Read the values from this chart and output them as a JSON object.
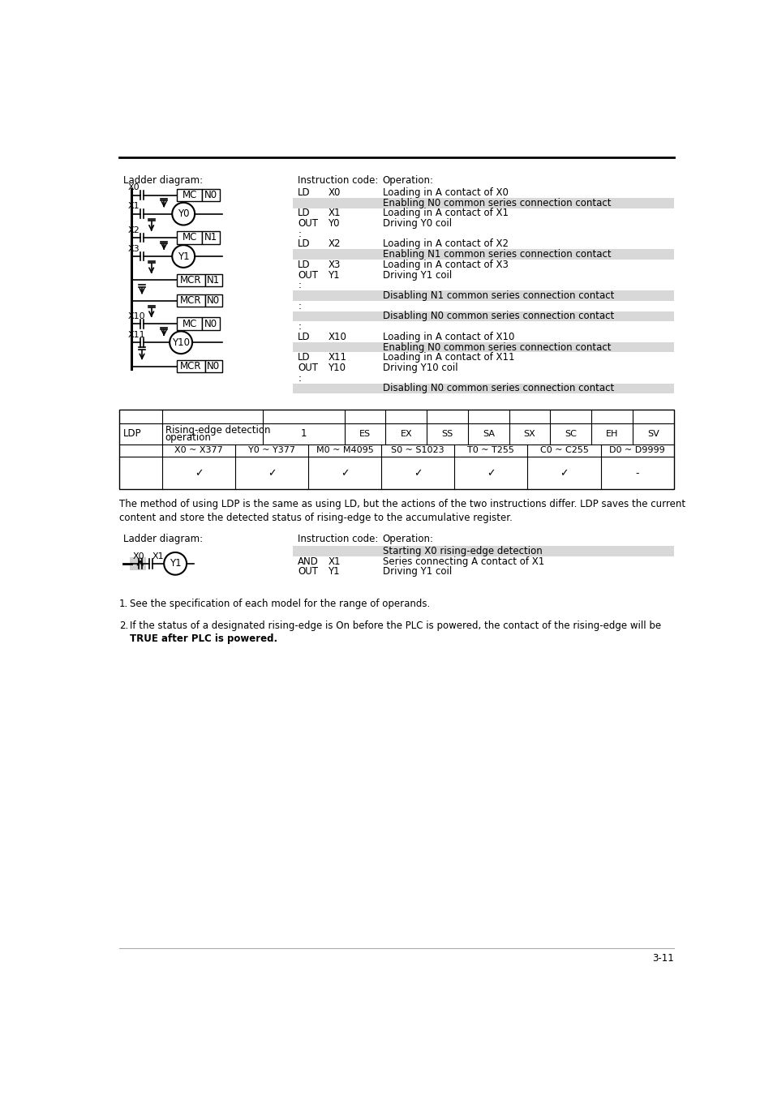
{
  "page_number": "3-11",
  "top_section": {
    "instructions": [
      {
        "col1": "LD",
        "col2": "X0",
        "col3": "Loading in A contact of X0",
        "highlight": false
      },
      {
        "col1": "",
        "col2": "",
        "col3": "Enabling N0 common series connection contact",
        "highlight": true
      },
      {
        "col1": "LD",
        "col2": "X1",
        "col3": "Loading in A contact of X1",
        "highlight": false
      },
      {
        "col1": "OUT",
        "col2": "Y0",
        "col3": "Driving Y0 coil",
        "highlight": false
      },
      {
        "col1": ":",
        "col2": "",
        "col3": "",
        "highlight": false
      },
      {
        "col1": "LD",
        "col2": "X2",
        "col3": "Loading in A contact of X2",
        "highlight": false
      },
      {
        "col1": "",
        "col2": "",
        "col3": "Enabling N1 common series connection contact",
        "highlight": true
      },
      {
        "col1": "LD",
        "col2": "X3",
        "col3": "Loading in A contact of X3",
        "highlight": false
      },
      {
        "col1": "OUT",
        "col2": "Y1",
        "col3": "Driving Y1 coil",
        "highlight": false
      },
      {
        "col1": ":",
        "col2": "",
        "col3": "",
        "highlight": false
      },
      {
        "col1": "",
        "col2": "",
        "col3": "Disabling N1 common series connection contact",
        "highlight": true
      },
      {
        "col1": ":",
        "col2": "",
        "col3": "",
        "highlight": false
      },
      {
        "col1": "",
        "col2": "",
        "col3": "Disabling N0 common series connection contact",
        "highlight": true
      },
      {
        "col1": ":",
        "col2": "",
        "col3": "",
        "highlight": false
      },
      {
        "col1": "LD",
        "col2": "X10",
        "col3": "Loading in A contact of X10",
        "highlight": false
      },
      {
        "col1": "",
        "col2": "",
        "col3": "Enabling N0 common series connection contact",
        "highlight": true
      },
      {
        "col1": "LD",
        "col2": "X11",
        "col3": "Loading in A contact of X11",
        "highlight": false
      },
      {
        "col1": "OUT",
        "col2": "Y10",
        "col3": "Driving Y10 coil",
        "highlight": false
      },
      {
        "col1": ":",
        "col2": "",
        "col3": "",
        "highlight": false
      },
      {
        "col1": "",
        "col2": "",
        "col3": "Disabling N0 common series connection contact",
        "highlight": true
      }
    ]
  },
  "ldp_table": {
    "instruction": "LDP",
    "description_line1": "Rising-edge detection",
    "description_line2": "operation",
    "steps": "1",
    "plc_types": [
      "ES",
      "EX",
      "SS",
      "SA",
      "SX",
      "SC",
      "EH",
      "SV"
    ],
    "operand_cols": [
      "X0 ~ X377",
      "Y0 ~ Y377",
      "M0 ~ M4095",
      "S0 ~ S1023",
      "T0 ~ T255",
      "C0 ~ C255",
      "D0 ~ D9999"
    ],
    "operand_checks": [
      "✓",
      "✓",
      "✓",
      "✓",
      "✓",
      "✓",
      "-"
    ]
  },
  "ldp_text_line1": "The method of using LDP is the same as using LD, but the actions of the two instructions differ. LDP saves the current",
  "ldp_text_line2": "content and store the detected status of rising-edge to the accumulative register.",
  "bottom_section": {
    "instructions": [
      {
        "col1": "",
        "col2": "",
        "col3": "Starting X0 rising-edge detection",
        "highlight": true
      },
      {
        "col1": "AND",
        "col2": "X1",
        "col3": "Series connecting A contact of X1",
        "highlight": false
      },
      {
        "col1": "OUT",
        "col2": "Y1",
        "col3": "Driving Y1 coil",
        "highlight": false
      }
    ]
  },
  "note1": "See the specification of each model for the range of operands.",
  "note2a": "If the status of a designated rising-edge is On before the PLC is powered, the contact of the rising-edge will be",
  "note2b": "TRUE after PLC is powered.",
  "highlight_color": "#d8d8d8",
  "bg_color": "#ffffff"
}
